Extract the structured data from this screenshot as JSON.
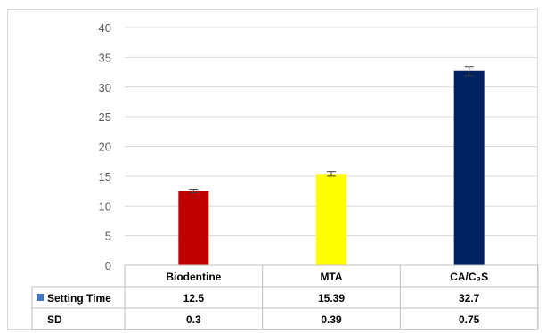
{
  "chart_data": {
    "type": "bar",
    "categories": [
      "Biodentine",
      "MTA",
      "CA/C₃S"
    ],
    "series": [
      {
        "name": "Setting Time",
        "values": [
          12.5,
          15.39,
          32.7
        ],
        "errors": [
          0.3,
          0.39,
          0.75
        ]
      }
    ],
    "bar_colors": [
      "#c00000",
      "#ffff00",
      "#002060"
    ],
    "legend_marker_color": "#4472c4",
    "ylim": [
      0,
      40
    ],
    "yticks": [
      0,
      5,
      10,
      15,
      20,
      25,
      30,
      35,
      40
    ],
    "grid": true,
    "data_table": {
      "rows": [
        {
          "label": "Setting Time",
          "cells": [
            "12.5",
            "15.39",
            "32.7"
          ]
        },
        {
          "label": "SD",
          "cells": [
            "0.3",
            "0.39",
            "0.75"
          ]
        }
      ]
    }
  }
}
